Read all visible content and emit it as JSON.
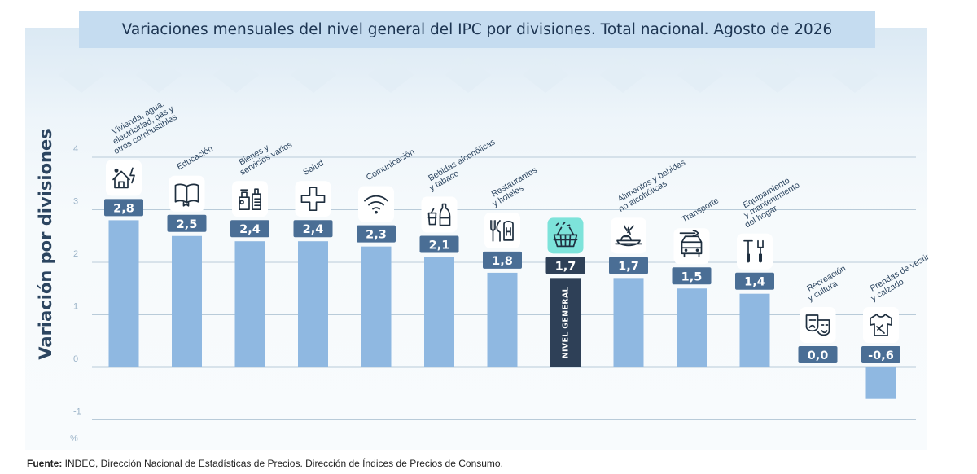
{
  "colors": {
    "bar": "#8fb8e1",
    "bar_general": "#2e4057",
    "label_box": "#4a6e95",
    "label_box_general": "#2e4057",
    "icon_tile": "#ffffff",
    "icon_tile_general": "#7de3da",
    "grid": "#b9cbd9"
  },
  "chart_data": {
    "type": "bar",
    "title": "Variaciones mensuales del nivel general del IPC por divisiones. Total nacional. Agosto de 2026",
    "ylabel": "Variación por divisiones",
    "yunit": "%",
    "ylim": [
      -1,
      4
    ],
    "yticks": [
      "-1",
      "0",
      "1",
      "2",
      "3",
      "4"
    ],
    "grid": true,
    "categories": [
      "Vivienda, agua, electricidad, gas y otros combustibles",
      "Educación",
      "Bienes y servicios varios",
      "Salud",
      "Comunicación",
      "Bebidas alcohólicas y tabaco",
      "Restaurantes y hoteles",
      "Nivel general",
      "Alimentos y bebidas no alcohólicas",
      "Transporte",
      "Equipamiento y mantenimiento del hogar",
      "Recreación y cultura",
      "Prendas de vestir y calzado"
    ],
    "category_label_lines": [
      [
        "Vivienda, agua,",
        "electricidad, gas y",
        "otros combustibles"
      ],
      [
        "Educación"
      ],
      [
        "Bienes y",
        "servicios varios"
      ],
      [
        "Salud"
      ],
      [
        "Comunicación"
      ],
      [
        "Bebidas alcohólicas",
        "y tabaco"
      ],
      [
        "Restaurantes",
        "y hoteles"
      ],
      [],
      [
        "Alimentos y bebidas",
        "no alcohólicas"
      ],
      [
        "Transporte"
      ],
      [
        "Equipamiento",
        "y mantenimiento",
        "del hogar"
      ],
      [
        "Recreación",
        "y cultura"
      ],
      [
        "Prendas de vestir",
        "y calzado"
      ]
    ],
    "values": [
      2.8,
      2.5,
      2.4,
      2.4,
      2.3,
      2.1,
      1.8,
      1.7,
      1.7,
      1.5,
      1.4,
      0.0,
      -0.6
    ],
    "value_labels": [
      "2,8",
      "2,5",
      "2,4",
      "2,4",
      "2,3",
      "2,1",
      "1,8",
      "1,7",
      "1,7",
      "1,5",
      "1,4",
      "0,0",
      "-0,6"
    ],
    "highlight_label": "NIVEL GENERAL",
    "icons": [
      "house-energy-icon",
      "book-icon",
      "spray-bottles-icon",
      "medical-cross-icon",
      "wifi-icon",
      "bottle-glass-icon",
      "fork-hotel-icon",
      "basket-icon",
      "food-bowl-icon",
      "car-wrench-icon",
      "tools-icon",
      "theater-masks-icon",
      "shirt-icon"
    ]
  },
  "footer": {
    "source_label": "Fuente:",
    "source_text": " INDEC, Dirección Nacional de Estadísticas de Precios. Dirección de Índices de Precios de Consumo."
  }
}
